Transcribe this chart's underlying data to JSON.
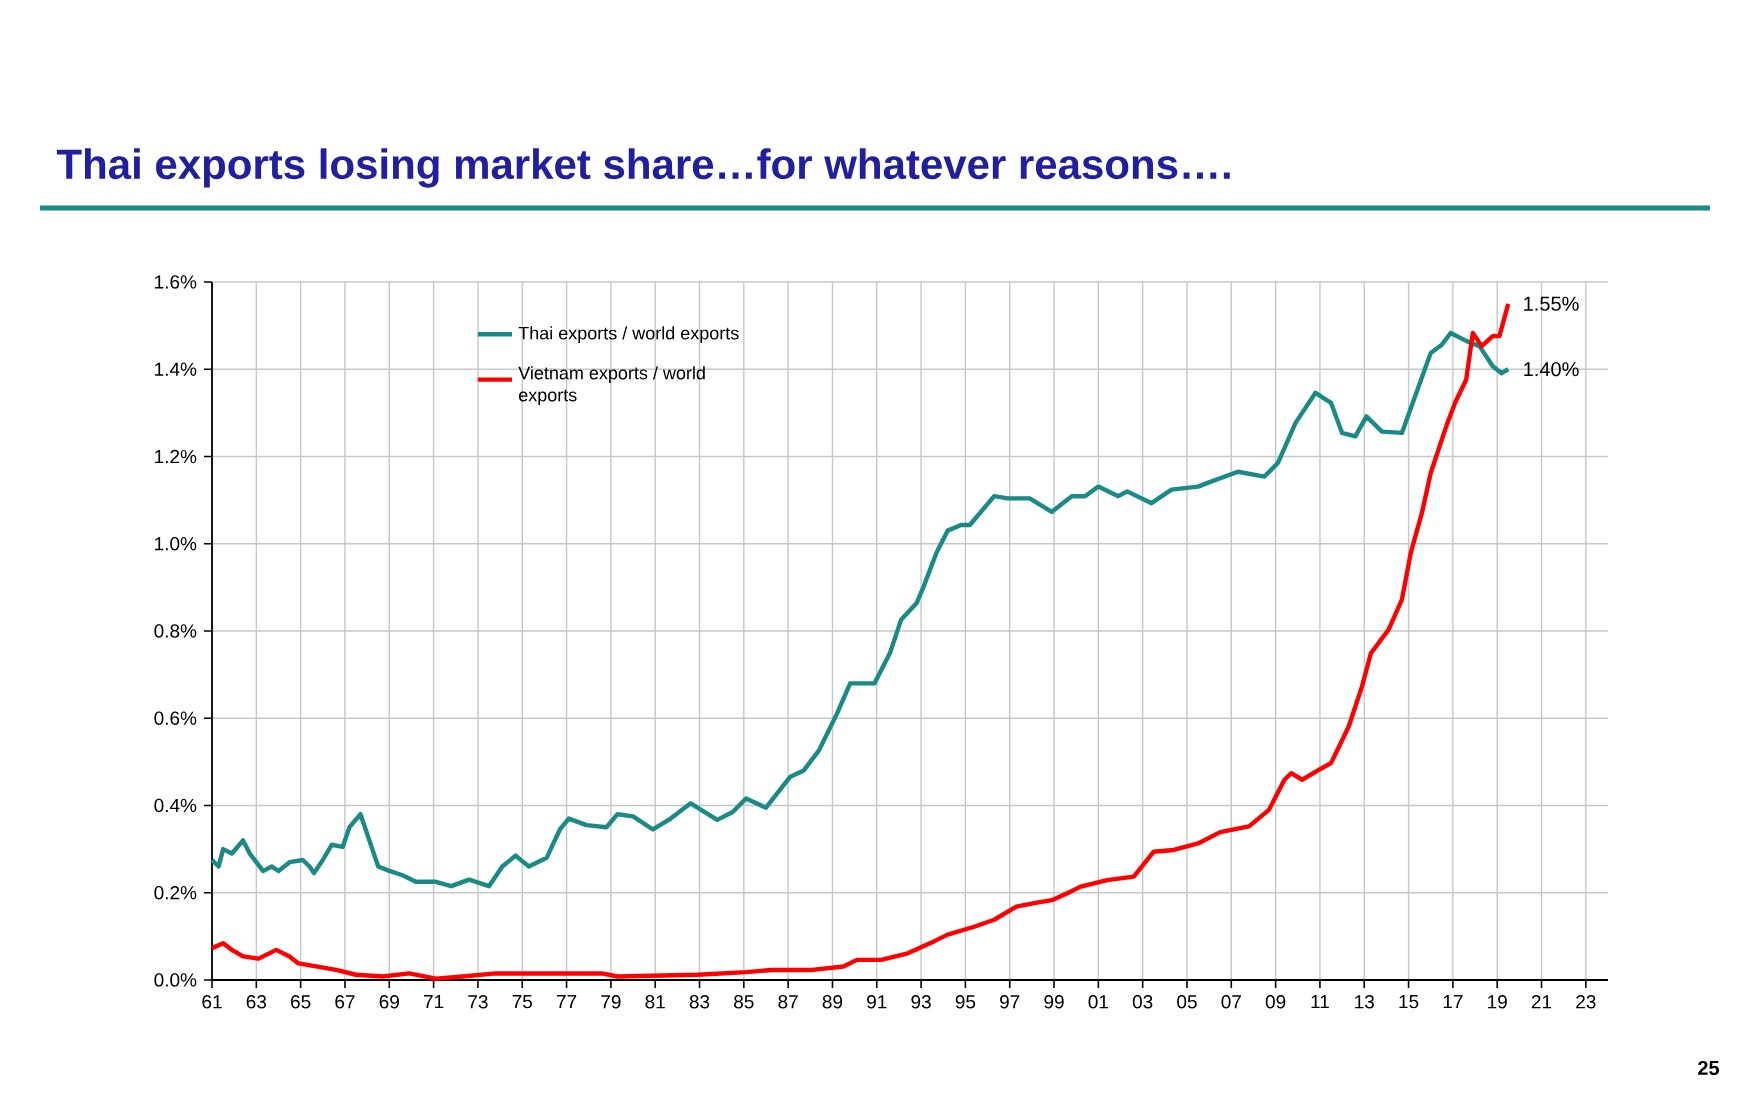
{
  "chart_data": {
    "type": "line",
    "title": "Thai exports losing market share…for whatever reasons….",
    "xlim": [
      1961,
      2024
    ],
    "ylim": [
      0,
      1.6
    ],
    "xticks": [
      {
        "value": 1961,
        "label": "61"
      },
      {
        "value": 1963,
        "label": "63"
      },
      {
        "value": 1965,
        "label": "65"
      },
      {
        "value": 1967,
        "label": "67"
      },
      {
        "value": 1969,
        "label": "69"
      },
      {
        "value": 1971,
        "label": "71"
      },
      {
        "value": 1973,
        "label": "73"
      },
      {
        "value": 1975,
        "label": "75"
      },
      {
        "value": 1977,
        "label": "77"
      },
      {
        "value": 1979,
        "label": "79"
      },
      {
        "value": 1981,
        "label": "81"
      },
      {
        "value": 1983,
        "label": "83"
      },
      {
        "value": 1985,
        "label": "85"
      },
      {
        "value": 1987,
        "label": "87"
      },
      {
        "value": 1989,
        "label": "89"
      },
      {
        "value": 1991,
        "label": "91"
      },
      {
        "value": 1993,
        "label": "93"
      },
      {
        "value": 1995,
        "label": "95"
      },
      {
        "value": 1997,
        "label": "97"
      },
      {
        "value": 1999,
        "label": "99"
      },
      {
        "value": 2001,
        "label": "01"
      },
      {
        "value": 2003,
        "label": "03"
      },
      {
        "value": 2005,
        "label": "05"
      },
      {
        "value": 2007,
        "label": "07"
      },
      {
        "value": 2009,
        "label": "09"
      },
      {
        "value": 2011,
        "label": "11"
      },
      {
        "value": 2013,
        "label": "13"
      },
      {
        "value": 2015,
        "label": "15"
      },
      {
        "value": 2017,
        "label": "17"
      },
      {
        "value": 2019,
        "label": "19"
      },
      {
        "value": 2021,
        "label": "21"
      },
      {
        "value": 2023,
        "label": "23"
      }
    ],
    "yticks": [
      {
        "value": 0,
        "label": "0.0%"
      },
      {
        "value": 0.2,
        "label": "0.2%"
      },
      {
        "value": 0.4,
        "label": "0.4%"
      },
      {
        "value": 0.6,
        "label": "0.6%"
      },
      {
        "value": 0.8,
        "label": "0.8%"
      },
      {
        "value": 1.0,
        "label": "1.0%"
      },
      {
        "value": 1.2,
        "label": "1.2%"
      },
      {
        "value": 1.4,
        "label": "1.4%"
      },
      {
        "value": 1.6,
        "label": "1.6%"
      }
    ],
    "grid": true,
    "legend": "top left",
    "series": [
      {
        "name": "Thai exports / world exports",
        "color": "#1a8a86",
        "x": [
          1961.0,
          1961.3,
          1961.5,
          1961.9,
          1962.4,
          1962.7,
          1963.3,
          1963.7,
          1964.0,
          1964.5,
          1965.1,
          1965.4,
          1965.6,
          1966.0,
          1966.4,
          1966.9,
          1967.2,
          1967.7,
          1968.1,
          1968.5,
          1969.0,
          1969.6,
          1970.2,
          1971.1,
          1971.8,
          1972.6,
          1973.5,
          1974.1,
          1974.7,
          1975.3,
          1976.1,
          1976.7,
          1977.1,
          1977.9,
          1978.8,
          1979.3,
          1980.0,
          1980.9,
          1981.7,
          1982.6,
          1983.8,
          1984.5,
          1985.1,
          1986.0,
          1987.1,
          1987.7,
          1988.4,
          1989.2,
          1989.8,
          1990.9,
          1991.6,
          1992.1,
          1992.8,
          1993.1,
          1993.7,
          1994.2,
          1994.8,
          1995.2,
          1996.3,
          1996.9,
          1997.9,
          1998.9,
          1999.8,
          2000.4,
          2001.0,
          2001.9,
          2002.3,
          2003.4,
          2004.3,
          2005.5,
          2005.9,
          2007.3,
          2008.5,
          2009.1,
          2009.9,
          2010.8,
          2011.5,
          2012.0,
          2012.6,
          2013.1,
          2013.8,
          2014.7,
          2015.4,
          2016.0,
          2016.5,
          2016.9,
          2017.6,
          2018.2,
          2018.8,
          2019.2,
          2019.5
        ],
        "values": [
          0.275,
          0.26,
          0.3,
          0.29,
          0.32,
          0.29,
          0.25,
          0.26,
          0.25,
          0.27,
          0.275,
          0.26,
          0.245,
          0.275,
          0.31,
          0.305,
          0.35,
          0.38,
          0.32,
          0.26,
          0.25,
          0.24,
          0.225,
          0.225,
          0.215,
          0.23,
          0.215,
          0.26,
          0.285,
          0.26,
          0.28,
          0.345,
          0.37,
          0.355,
          0.35,
          0.38,
          0.375,
          0.345,
          0.37,
          0.405,
          0.367,
          0.385,
          0.416,
          0.395,
          0.466,
          0.48,
          0.527,
          0.61,
          0.68,
          0.68,
          0.75,
          0.826,
          0.864,
          0.9,
          0.98,
          1.03,
          1.043,
          1.043,
          1.109,
          1.104,
          1.104,
          1.073,
          1.109,
          1.109,
          1.131,
          1.109,
          1.12,
          1.093,
          1.124,
          1.131,
          1.139,
          1.165,
          1.154,
          1.185,
          1.277,
          1.346,
          1.323,
          1.254,
          1.246,
          1.292,
          1.257,
          1.254,
          1.353,
          1.437,
          1.456,
          1.483,
          1.465,
          1.453,
          1.407,
          1.391,
          1.4
        ]
      },
      {
        "name": "Vietnam exports / world exports",
        "color": "#ff0000",
        "x": [
          1961.0,
          1961.5,
          1961.9,
          1962.4,
          1963.1,
          1963.9,
          1964.5,
          1964.9,
          1965.7,
          1966.6,
          1967.5,
          1968.7,
          1969.9,
          1971.1,
          1972.3,
          1973.8,
          1976.2,
          1978.6,
          1979.3,
          1982.9,
          1985.1,
          1986.3,
          1988.1,
          1989.5,
          1990.1,
          1991.2,
          1992.4,
          1993.6,
          1994.2,
          1995.4,
          1996.3,
          1997.3,
          1998.1,
          1998.9,
          1999.6,
          2000.2,
          2001.4,
          2002.6,
          2003.5,
          2004.4,
          2005.5,
          2006.5,
          2007.8,
          2008.7,
          2009.4,
          2009.7,
          2010.2,
          2011.1,
          2011.5,
          2012.3,
          2012.9,
          2013.3,
          2014.1,
          2014.7,
          2015.1,
          2015.6,
          2016.0,
          2016.7,
          2017.1,
          2017.6,
          2017.9,
          2018.3,
          2018.8,
          2019.1,
          2019.5
        ],
        "values": [
          0.073,
          0.084,
          0.069,
          0.054,
          0.049,
          0.069,
          0.054,
          0.038,
          0.031,
          0.023,
          0.012,
          0.008,
          0.015,
          0.003,
          0.008,
          0.015,
          0.015,
          0.015,
          0.008,
          0.012,
          0.018,
          0.023,
          0.023,
          0.031,
          0.046,
          0.046,
          0.061,
          0.089,
          0.104,
          0.122,
          0.138,
          0.168,
          0.176,
          0.183,
          0.199,
          0.214,
          0.229,
          0.237,
          0.294,
          0.298,
          0.313,
          0.339,
          0.352,
          0.39,
          0.459,
          0.474,
          0.459,
          0.486,
          0.497,
          0.581,
          0.673,
          0.749,
          0.803,
          0.872,
          0.979,
          1.07,
          1.162,
          1.269,
          1.323,
          1.376,
          1.483,
          1.453,
          1.476,
          1.476,
          1.55
        ]
      }
    ],
    "annotations": [
      {
        "text": "1.55%",
        "x": 2019.5,
        "y": 1.55
      },
      {
        "text": "1.40%",
        "x": 2019.5,
        "y": 1.4
      },
      "25"
    ]
  }
}
